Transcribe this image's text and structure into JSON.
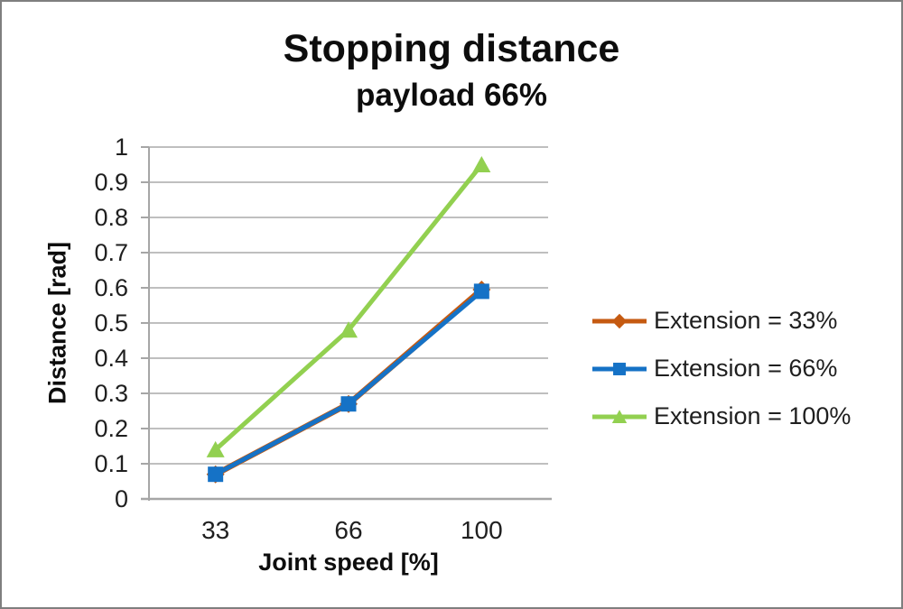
{
  "title": "Stopping distance",
  "subtitle": "payload 66%",
  "colors": {
    "background": "#FFFFFF",
    "figure_border": "#7F7F7F",
    "text": "#1F1F1F",
    "gridline": "#BFBFBF",
    "axis": "#A6A6A6",
    "series_extension_33": "#C55A11",
    "series_extension_66": "#1572C6",
    "series_extension_100": "#92D050"
  },
  "chart_data": {
    "type": "line",
    "title": "Stopping distance",
    "subtitle": "payload 66%",
    "xlabel": "Joint speed [%]",
    "ylabel": "Distance [rad]",
    "categories": [
      33,
      66,
      100
    ],
    "x_tick_labels": [
      "33",
      "66",
      "100"
    ],
    "y_tick_labels": [
      "0",
      "0.1",
      "0.2",
      "0.3",
      "0.4",
      "0.5",
      "0.6",
      "0.7",
      "0.8",
      "0.9",
      "1"
    ],
    "ylim": [
      0,
      1
    ],
    "ytick_step": 0.1,
    "grid": true,
    "legend_position": "right",
    "series": [
      {
        "name": "Extension = 33%",
        "color": "#C55A11",
        "marker": "diamond",
        "values": [
          0.07,
          0.27,
          0.595
        ]
      },
      {
        "name": "Extension = 66%",
        "color": "#1572C6",
        "marker": "square",
        "values": [
          0.07,
          0.27,
          0.59
        ]
      },
      {
        "name": "Extension = 100%",
        "color": "#92D050",
        "marker": "triangle",
        "values": [
          0.14,
          0.48,
          0.95
        ]
      }
    ]
  }
}
